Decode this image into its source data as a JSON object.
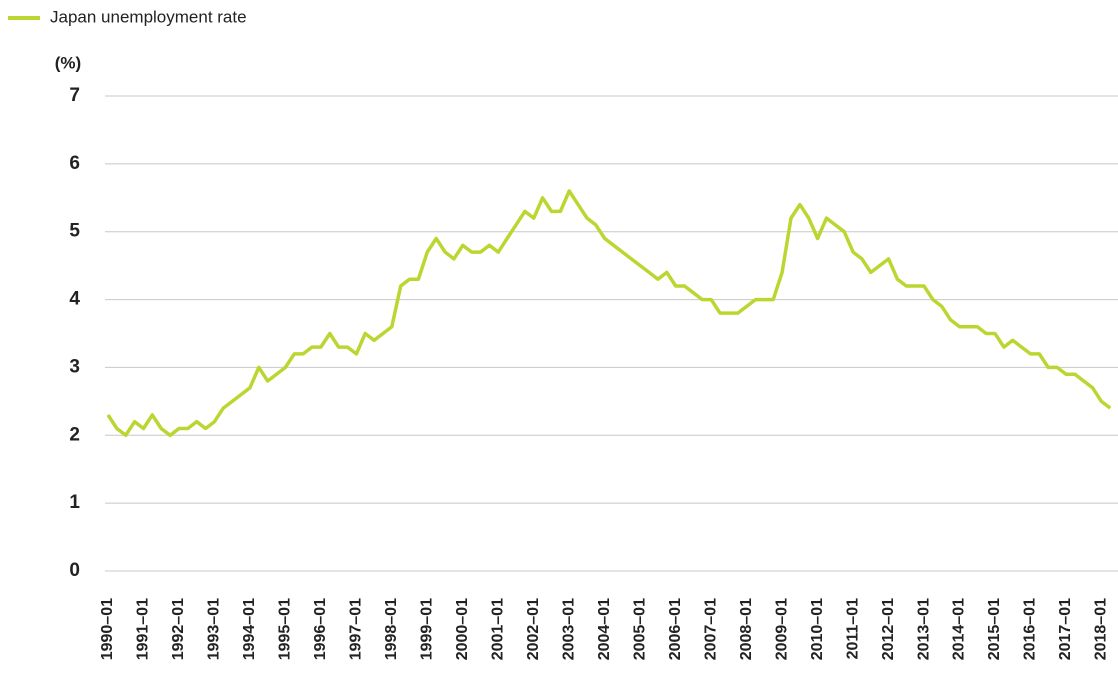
{
  "chart_data": {
    "type": "line",
    "unit_label": "(%)",
    "categories": [
      "1990–01",
      null,
      null,
      null,
      "1991–01",
      null,
      null,
      null,
      "1992–01",
      null,
      null,
      null,
      "1993–01",
      null,
      null,
      null,
      "1994–01",
      null,
      null,
      null,
      "1995–01",
      null,
      null,
      null,
      "1996–01",
      null,
      null,
      null,
      "1997–01",
      null,
      null,
      null,
      "1998–01",
      null,
      null,
      null,
      "1999–01",
      null,
      null,
      null,
      "2000–01",
      null,
      null,
      null,
      "2001–01",
      null,
      null,
      null,
      "2002–01",
      null,
      null,
      null,
      "2003–01",
      null,
      null,
      null,
      "2004–01",
      null,
      null,
      null,
      "2005–01",
      null,
      null,
      null,
      "2006–01",
      null,
      null,
      null,
      "2007–01",
      null,
      null,
      null,
      "2008–01",
      null,
      null,
      null,
      "2009–01",
      null,
      null,
      null,
      "2010–01",
      null,
      null,
      null,
      "2011–01",
      null,
      null,
      null,
      "2012–01",
      null,
      null,
      null,
      "2013–01",
      null,
      null,
      null,
      "2014–01",
      null,
      null,
      null,
      "2015–01",
      null,
      null,
      null,
      "2016–01",
      null,
      null,
      null,
      "2017–01",
      null,
      null,
      null,
      "2018–01",
      null
    ],
    "series": [
      {
        "name": "Japan unemployment rate",
        "color": "#bcd631",
        "values": [
          2.3,
          2.1,
          2.0,
          2.2,
          2.1,
          2.3,
          2.1,
          2.0,
          2.1,
          2.1,
          2.2,
          2.1,
          2.2,
          2.4,
          2.5,
          2.6,
          2.7,
          3.0,
          2.8,
          2.9,
          3.0,
          3.2,
          3.2,
          3.3,
          3.3,
          3.5,
          3.3,
          3.3,
          3.2,
          3.5,
          3.4,
          3.5,
          3.6,
          4.2,
          4.3,
          4.3,
          4.7,
          4.9,
          4.7,
          4.6,
          4.8,
          4.7,
          4.7,
          4.8,
          4.7,
          4.9,
          5.1,
          5.3,
          5.2,
          5.5,
          5.3,
          5.3,
          5.6,
          5.4,
          5.2,
          5.1,
          4.9,
          4.8,
          4.7,
          4.6,
          4.5,
          4.4,
          4.3,
          4.4,
          4.2,
          4.2,
          4.1,
          4.0,
          4.0,
          3.8,
          3.8,
          3.8,
          3.9,
          4.0,
          4.0,
          4.0,
          4.4,
          5.2,
          5.4,
          5.2,
          4.9,
          5.2,
          5.1,
          5.0,
          4.7,
          4.6,
          4.4,
          4.5,
          4.6,
          4.3,
          4.2,
          4.2,
          4.2,
          4.0,
          3.9,
          3.7,
          3.6,
          3.6,
          3.6,
          3.5,
          3.5,
          3.3,
          3.4,
          3.3,
          3.2,
          3.2,
          3.0,
          3.0,
          2.9,
          2.9,
          2.8,
          2.7,
          2.5,
          2.4
        ]
      }
    ],
    "ylim": [
      0,
      7
    ],
    "yticks": [
      0,
      1,
      2,
      3,
      4,
      5,
      6,
      7
    ],
    "grid": true,
    "legend": "top-left"
  }
}
